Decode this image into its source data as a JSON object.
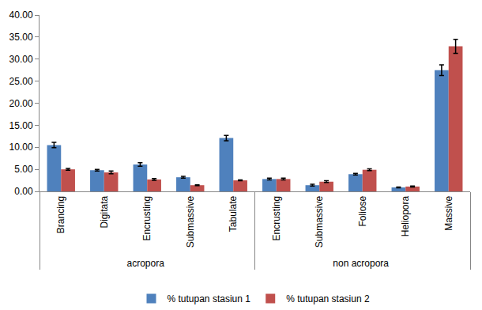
{
  "chart_data": {
    "type": "bar",
    "groups": [
      "acropora",
      "acropora",
      "acropora",
      "acropora",
      "acropora",
      "non acropora",
      "non acropora",
      "non acropora",
      "non acropora",
      "non acropora"
    ],
    "categories": [
      "Brancing",
      "Digitata",
      "Encrusting",
      "Submassive",
      "Tabulate",
      "Encrusting",
      "Foliose",
      "Heliopora",
      "Massive",
      "Submassive"
    ],
    "series": [
      {
        "name": "% tutupan stasiun 1",
        "color": "#4f81bd",
        "values": [
          10.5,
          4.8,
          6.1,
          3.2,
          12.1,
          2.8,
          3.9,
          0.9,
          27.5,
          1.4
        ],
        "errors": [
          0.6,
          0.2,
          0.4,
          0.2,
          0.6,
          0.2,
          0.2,
          0.1,
          1.2,
          0.2
        ]
      },
      {
        "name": "% tutupan stasiun 2",
        "color": "#c0504d",
        "values": [
          5.0,
          4.3,
          2.7,
          1.4,
          2.5,
          2.8,
          4.9,
          1.1,
          32.9,
          2.2
        ],
        "errors": [
          0.2,
          0.3,
          0.2,
          0.1,
          0.1,
          0.2,
          0.2,
          0.1,
          1.6,
          0.2
        ]
      }
    ],
    "ylim": [
      0,
      40
    ],
    "yticks": [
      {
        "value": 0,
        "label": "0.00"
      },
      {
        "value": 5,
        "label": "5.00"
      },
      {
        "value": 10,
        "label": "10.00"
      },
      {
        "value": 15,
        "label": "15.00"
      },
      {
        "value": 20,
        "label": "20.00"
      },
      {
        "value": 25,
        "label": "25.00"
      },
      {
        "value": 30,
        "label": "30.00"
      },
      {
        "value": 35,
        "label": "35.00"
      },
      {
        "value": 40,
        "label": "40.00"
      }
    ],
    "grid": false,
    "legend": "bottom"
  }
}
